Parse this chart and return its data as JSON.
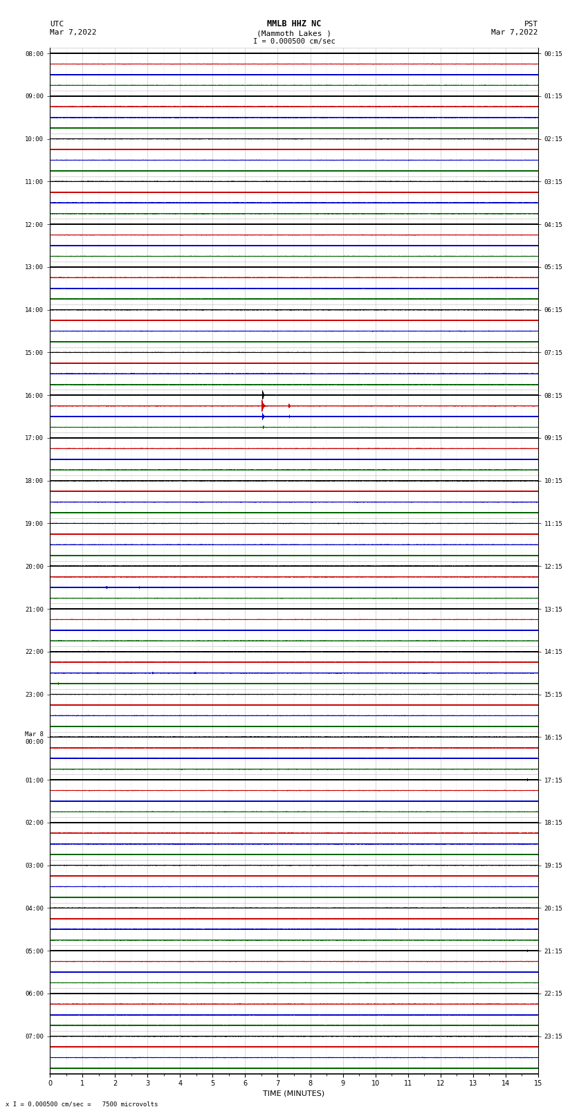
{
  "title_line1": "MMLB HHZ NC",
  "title_line2": "(Mammoth Lakes )",
  "scale_label": "I = 0.000500 cm/sec",
  "footer_label": "x I = 0.000500 cm/sec =   7500 microvolts",
  "utc_label": "UTC",
  "utc_date": "Mar 7,2022",
  "pst_label": "PST",
  "pst_date": "Mar 7,2022",
  "xlabel": "TIME (MINUTES)",
  "bg_color": "#ffffff",
  "grid_color": "#777777",
  "trace_colors": [
    "#000000",
    "#cc0000",
    "#0000cc",
    "#006600"
  ],
  "n_groups": 24,
  "n_channels": 4,
  "n_minutes": 15,
  "sample_rate": 50,
  "noise_amp": 0.012,
  "left_labels_utc": [
    "08:00",
    "09:00",
    "10:00",
    "11:00",
    "12:00",
    "13:00",
    "14:00",
    "15:00",
    "16:00",
    "17:00",
    "18:00",
    "19:00",
    "20:00",
    "21:00",
    "22:00",
    "23:00",
    "Mar 8\n00:00",
    "01:00",
    "02:00",
    "03:00",
    "04:00",
    "05:00",
    "06:00",
    "07:00"
  ],
  "right_labels_pst": [
    "00:15",
    "01:15",
    "02:15",
    "03:15",
    "04:15",
    "05:15",
    "06:15",
    "07:15",
    "08:15",
    "09:15",
    "10:15",
    "11:15",
    "12:15",
    "13:15",
    "14:15",
    "15:15",
    "16:15",
    "17:15",
    "18:15",
    "19:15",
    "20:15",
    "21:15",
    "22:15",
    "23:15"
  ],
  "events": [
    {
      "group": 8,
      "channel": 0,
      "minute": 6.6,
      "amp": 6.0,
      "freq": 12,
      "decay": 2.5,
      "dur": 30
    },
    {
      "group": 8,
      "channel": 1,
      "minute": 6.6,
      "amp": 8.0,
      "freq": 10,
      "decay": 2.0,
      "dur": 40
    },
    {
      "group": 8,
      "channel": 2,
      "minute": 6.6,
      "amp": 5.0,
      "freq": 10,
      "decay": 2.0,
      "dur": 35
    },
    {
      "group": 8,
      "channel": 3,
      "minute": 6.6,
      "amp": 2.0,
      "freq": 8,
      "decay": 3.0,
      "dur": 25
    },
    {
      "group": 8,
      "channel": 1,
      "minute": 7.4,
      "amp": 3.0,
      "freq": 10,
      "decay": 3.0,
      "dur": 25
    },
    {
      "group": 8,
      "channel": 2,
      "minute": 7.4,
      "amp": 2.0,
      "freq": 10,
      "decay": 3.0,
      "dur": 20
    },
    {
      "group": 9,
      "channel": 1,
      "minute": 9.5,
      "amp": 1.2,
      "freq": 8,
      "decay": 3.5,
      "dur": 20
    },
    {
      "group": 9,
      "channel": 2,
      "minute": 9.5,
      "amp": 0.8,
      "freq": 8,
      "decay": 3.5,
      "dur": 15
    },
    {
      "group": 9,
      "channel": 3,
      "minute": 9.5,
      "amp": 0.5,
      "freq": 6,
      "decay": 4.0,
      "dur": 15
    },
    {
      "group": 12,
      "channel": 2,
      "minute": 1.8,
      "amp": 1.8,
      "freq": 6,
      "decay": 2.0,
      "dur": 30
    },
    {
      "group": 12,
      "channel": 2,
      "minute": 2.8,
      "amp": 1.2,
      "freq": 6,
      "decay": 2.5,
      "dur": 25
    },
    {
      "group": 12,
      "channel": 2,
      "minute": 3.5,
      "amp": 1.0,
      "freq": 6,
      "decay": 2.5,
      "dur": 20
    },
    {
      "group": 12,
      "channel": 2,
      "minute": 4.2,
      "amp": 0.8,
      "freq": 6,
      "decay": 3.0,
      "dur": 20
    },
    {
      "group": 12,
      "channel": 2,
      "minute": 5.0,
      "amp": 0.7,
      "freq": 6,
      "decay": 3.0,
      "dur": 20
    },
    {
      "group": 12,
      "channel": 0,
      "minute": 2.8,
      "amp": 0.5,
      "freq": 8,
      "decay": 3.5,
      "dur": 15
    },
    {
      "group": 12,
      "channel": 1,
      "minute": 2.8,
      "amp": 0.4,
      "freq": 8,
      "decay": 3.5,
      "dur": 15
    },
    {
      "group": 14,
      "channel": 3,
      "minute": 0.3,
      "amp": 1.5,
      "freq": 8,
      "decay": 2.5,
      "dur": 20
    },
    {
      "group": 14,
      "channel": 0,
      "minute": 1.2,
      "amp": 1.0,
      "freq": 10,
      "decay": 3.0,
      "dur": 15
    },
    {
      "group": 14,
      "channel": 2,
      "minute": 1.5,
      "amp": 0.8,
      "freq": 8,
      "decay": 3.0,
      "dur": 20
    },
    {
      "group": 14,
      "channel": 2,
      "minute": 3.2,
      "amp": 1.5,
      "freq": 8,
      "decay": 2.5,
      "dur": 25
    },
    {
      "group": 14,
      "channel": 2,
      "minute": 4.5,
      "amp": 1.2,
      "freq": 8,
      "decay": 2.5,
      "dur": 20
    },
    {
      "group": 14,
      "channel": 1,
      "minute": 5.3,
      "amp": 0.6,
      "freq": 8,
      "decay": 3.5,
      "dur": 15
    },
    {
      "group": 14,
      "channel": 1,
      "minute": 9.6,
      "amp": 0.5,
      "freq": 8,
      "decay": 3.5,
      "dur": 15
    },
    {
      "group": 14,
      "channel": 1,
      "minute": 11.0,
      "amp": 0.7,
      "freq": 8,
      "decay": 3.0,
      "dur": 15
    },
    {
      "group": 13,
      "channel": 1,
      "minute": 9.5,
      "amp": 0.5,
      "freq": 8,
      "decay": 4.0,
      "dur": 12
    },
    {
      "group": 16,
      "channel": 0,
      "minute": 16.5,
      "amp": 0.6,
      "freq": 8,
      "decay": 3.5,
      "dur": 12
    },
    {
      "group": 17,
      "channel": 0,
      "minute": 14.7,
      "amp": 1.5,
      "freq": 10,
      "decay": 2.5,
      "dur": 15
    },
    {
      "group": 17,
      "channel": 1,
      "minute": 7.5,
      "amp": 0.4,
      "freq": 8,
      "decay": 4.0,
      "dur": 12
    },
    {
      "group": 17,
      "channel": 1,
      "minute": 9.5,
      "amp": 0.5,
      "freq": 8,
      "decay": 3.5,
      "dur": 15
    },
    {
      "group": 17,
      "channel": 1,
      "minute": 14.0,
      "amp": 0.5,
      "freq": 8,
      "decay": 3.5,
      "dur": 15
    },
    {
      "group": 16,
      "channel": 2,
      "minute": 6.5,
      "amp": 0.6,
      "freq": 8,
      "decay": 3.5,
      "dur": 15
    },
    {
      "group": 18,
      "channel": 2,
      "minute": 2.5,
      "amp": 0.8,
      "freq": 6,
      "decay": 3.0,
      "dur": 20
    },
    {
      "group": 18,
      "channel": 2,
      "minute": 3.8,
      "amp": 0.6,
      "freq": 6,
      "decay": 3.5,
      "dur": 15
    },
    {
      "group": 18,
      "channel": 2,
      "minute": 4.8,
      "amp": 0.5,
      "freq": 6,
      "decay": 3.5,
      "dur": 15
    },
    {
      "group": 21,
      "channel": 0,
      "minute": 14.7,
      "amp": 1.2,
      "freq": 10,
      "decay": 2.5,
      "dur": 15
    },
    {
      "group": 21,
      "channel": 1,
      "minute": 9.5,
      "amp": 0.4,
      "freq": 8,
      "decay": 4.0,
      "dur": 12
    },
    {
      "group": 21,
      "channel": 1,
      "minute": 14.5,
      "amp": 0.5,
      "freq": 8,
      "decay": 3.5,
      "dur": 12
    },
    {
      "group": 22,
      "channel": 1,
      "minute": 10.0,
      "amp": 0.4,
      "freq": 8,
      "decay": 4.0,
      "dur": 12
    },
    {
      "group": 22,
      "channel": 1,
      "minute": 14.0,
      "amp": 0.4,
      "freq": 8,
      "decay": 4.0,
      "dur": 12
    }
  ]
}
